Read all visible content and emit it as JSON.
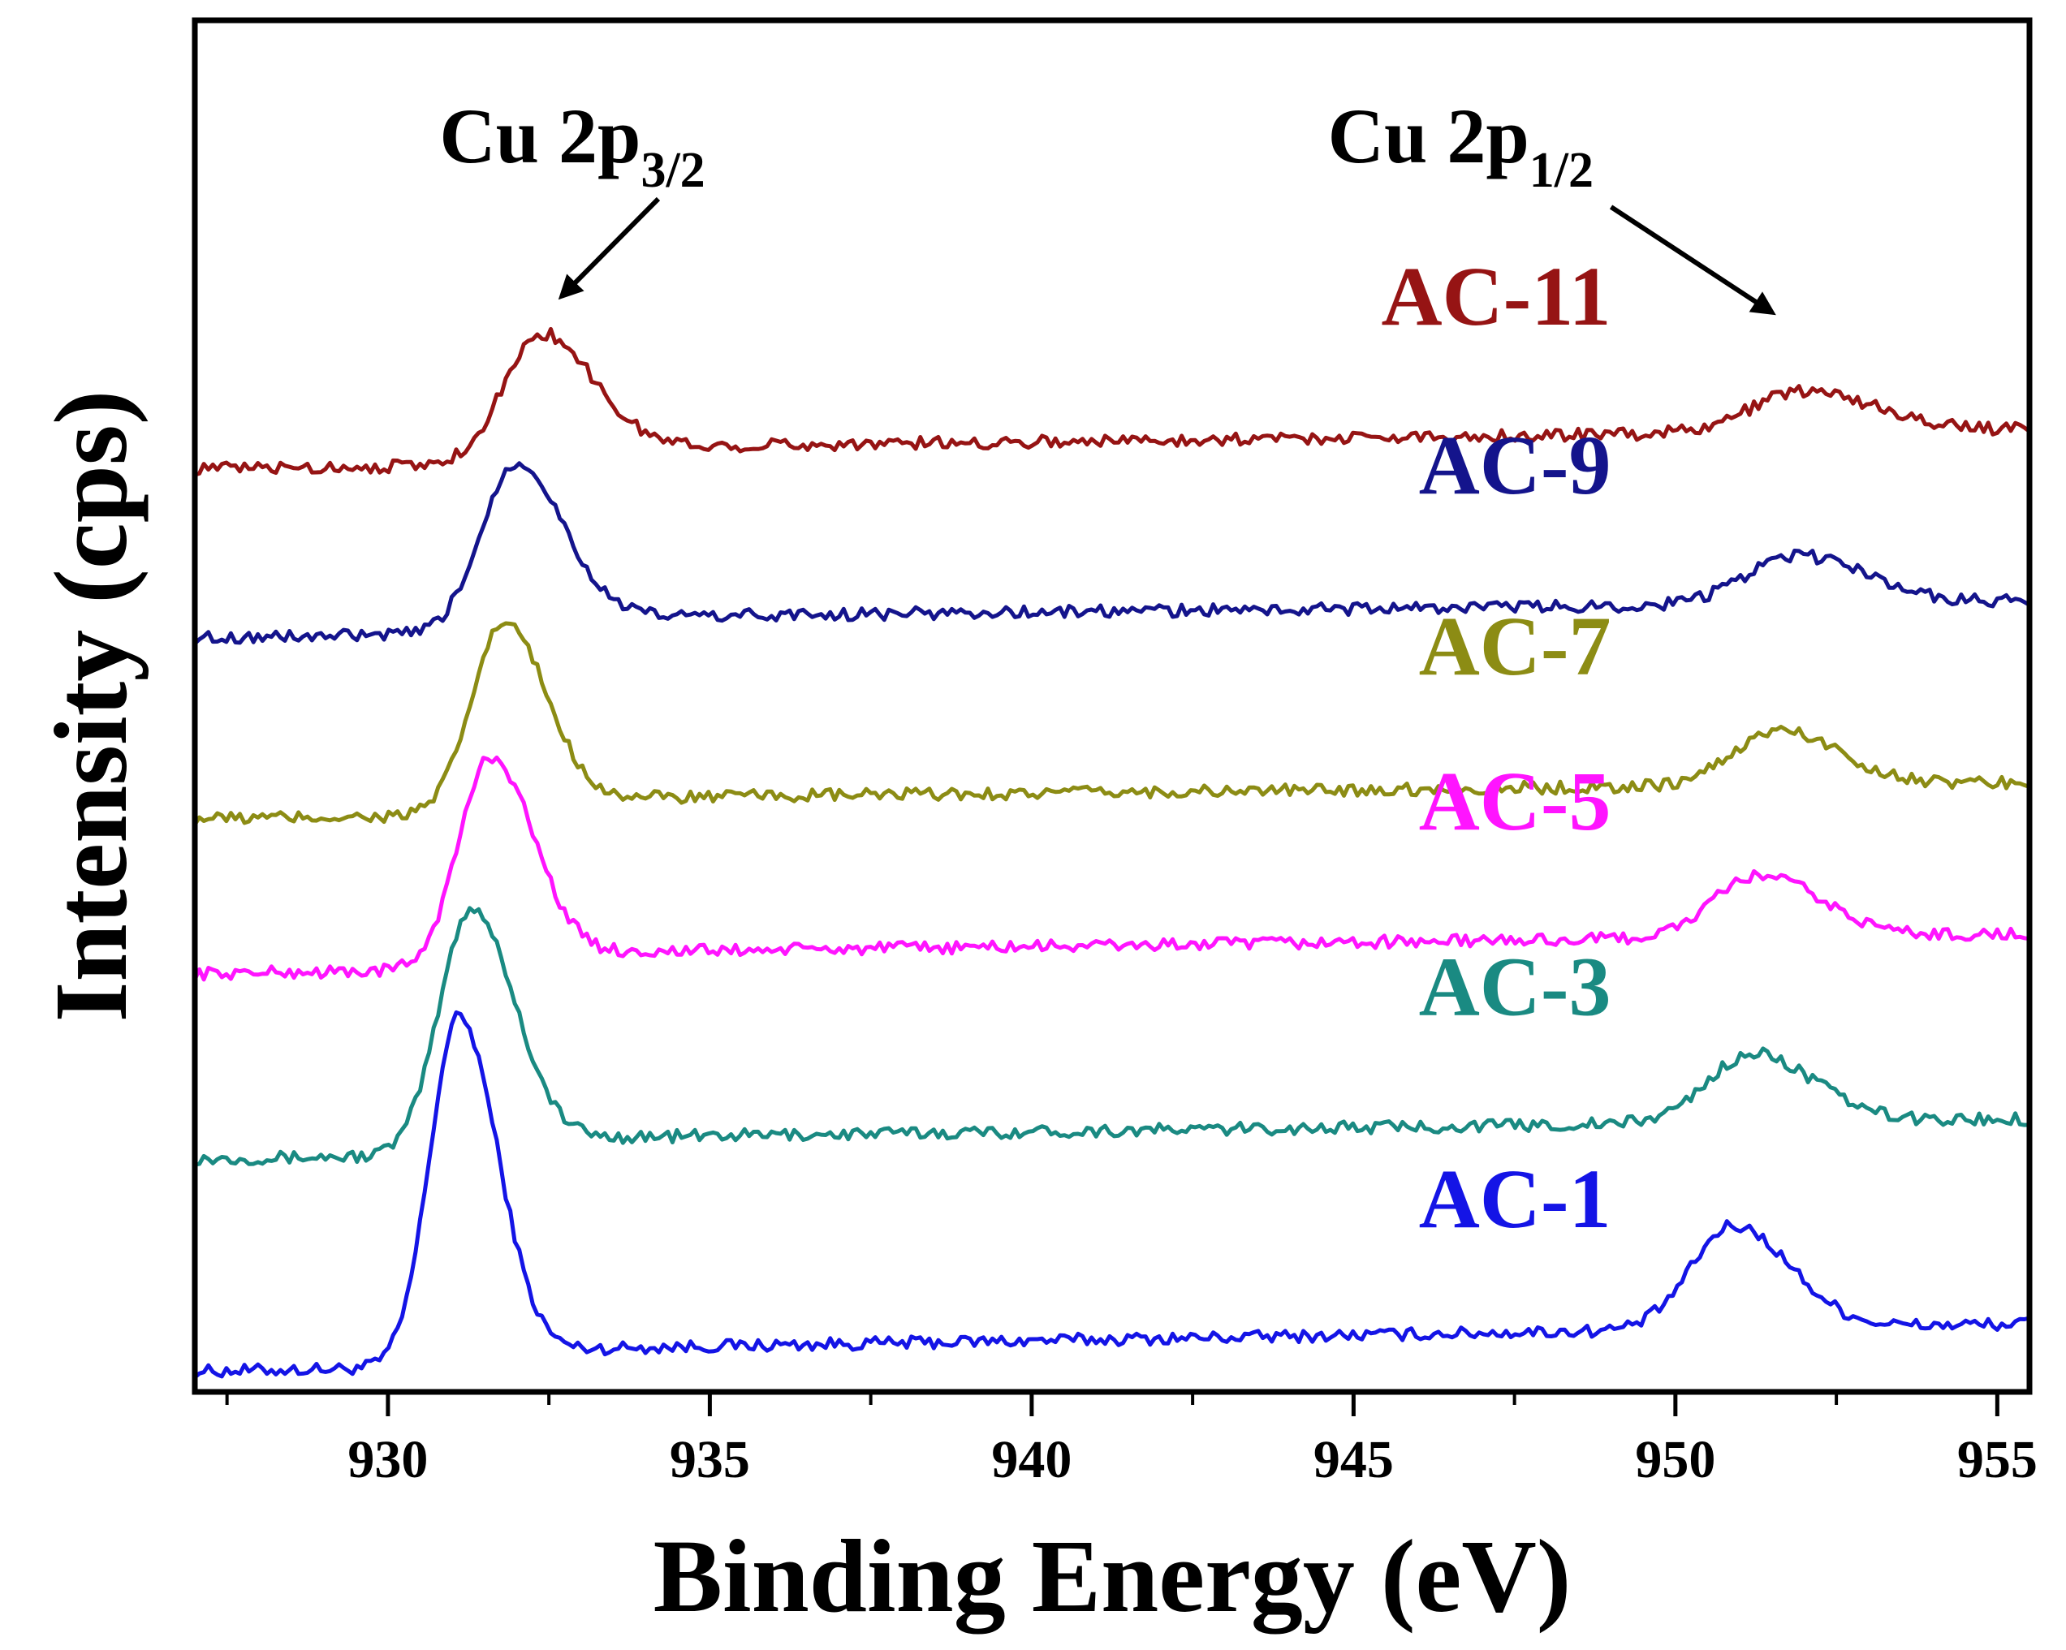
{
  "chart_data": {
    "type": "line",
    "title": "",
    "xlabel": "Binding Energy (eV)",
    "ylabel": "Intensity (cps)",
    "xlim": [
      927,
      955.5
    ],
    "x_ticks": [
      "930",
      "935",
      "940",
      "945",
      "950",
      "955"
    ],
    "x_tick_values": [
      930,
      935,
      940,
      945,
      950,
      955
    ],
    "x_minor_ticks": [
      927.5,
      932.5,
      937.5,
      942.5,
      947.5,
      952.5
    ],
    "y_ticks_shown": false,
    "ylim": [
      0,
      100
    ],
    "annotations": [
      {
        "id": "p32",
        "main": "Cu 2p",
        "sub": "3/2",
        "points_to_x": 932.7
      },
      {
        "id": "p12",
        "main": "Cu 2p",
        "sub": "1/2",
        "points_to_x": 951.5
      }
    ],
    "series": [
      {
        "name": "AC-1",
        "color": "#1414e6",
        "baseline": 1.5,
        "slope": 0.08,
        "peaks": [
          {
            "center": 931.1,
            "height": 25.5,
            "width": 0.45
          },
          {
            "center": 950.9,
            "height": 7.5,
            "width": 0.65
          }
        ]
      },
      {
        "name": "AC-3",
        "color": "#1a8a82",
        "baseline": 17.0,
        "slope": 0.06,
        "peaks": [
          {
            "center": 931.3,
            "height": 18.0,
            "width": 0.5
          },
          {
            "center": 951.2,
            "height": 5.0,
            "width": 0.7
          }
        ]
      },
      {
        "name": "AC-5",
        "color": "#ff14ff",
        "baseline": 30.5,
        "slope": 0.06,
        "peaks": [
          {
            "center": 931.6,
            "height": 15.5,
            "width": 0.5
          },
          {
            "center": 951.3,
            "height": 4.5,
            "width": 0.7
          }
        ]
      },
      {
        "name": "AC-7",
        "color": "#8c8c14",
        "baseline": 41.8,
        "slope": 0.05,
        "peaks": [
          {
            "center": 931.8,
            "height": 14.0,
            "width": 0.5
          },
          {
            "center": 951.6,
            "height": 4.0,
            "width": 0.7
          }
        ]
      },
      {
        "name": "AC-9",
        "color": "#14148c",
        "baseline": 55.0,
        "slope": 0.05,
        "peaks": [
          {
            "center": 932.0,
            "height": 12.5,
            "width": 0.55
          },
          {
            "center": 951.9,
            "height": 3.5,
            "width": 0.8
          }
        ]
      },
      {
        "name": "AC-11",
        "color": "#961414",
        "baseline": 67.3,
        "slope": 0.06,
        "peaks": [
          {
            "center": 932.4,
            "height": 9.5,
            "width": 0.6
          },
          {
            "center": 952.0,
            "height": 3.0,
            "width": 0.8
          }
        ]
      }
    ]
  }
}
